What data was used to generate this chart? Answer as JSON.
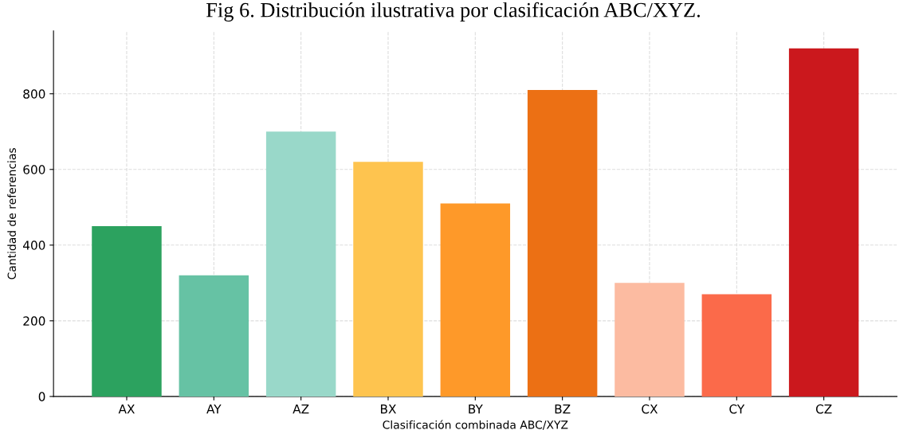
{
  "chart_data": {
    "type": "bar",
    "title": "Fig 6. Distribución ilustrativa por clasificación ABC/XYZ.",
    "xlabel": "Clasificación combinada ABC/XYZ",
    "ylabel": "Cantidad de referencias",
    "categories": [
      "AX",
      "AY",
      "AZ",
      "BX",
      "BY",
      "BZ",
      "CX",
      "CY",
      "CZ"
    ],
    "values": [
      450,
      320,
      700,
      620,
      510,
      810,
      300,
      270,
      920
    ],
    "colors": [
      "#2ca25f",
      "#66c2a4",
      "#99d8c9",
      "#fec44f",
      "#fe9929",
      "#ec7014",
      "#fcbba1",
      "#fb6a4a",
      "#cb181d"
    ],
    "ylim": [
      0,
      966
    ],
    "yticks": [
      0,
      200,
      400,
      600,
      800
    ],
    "grid": true,
    "legend": false
  }
}
